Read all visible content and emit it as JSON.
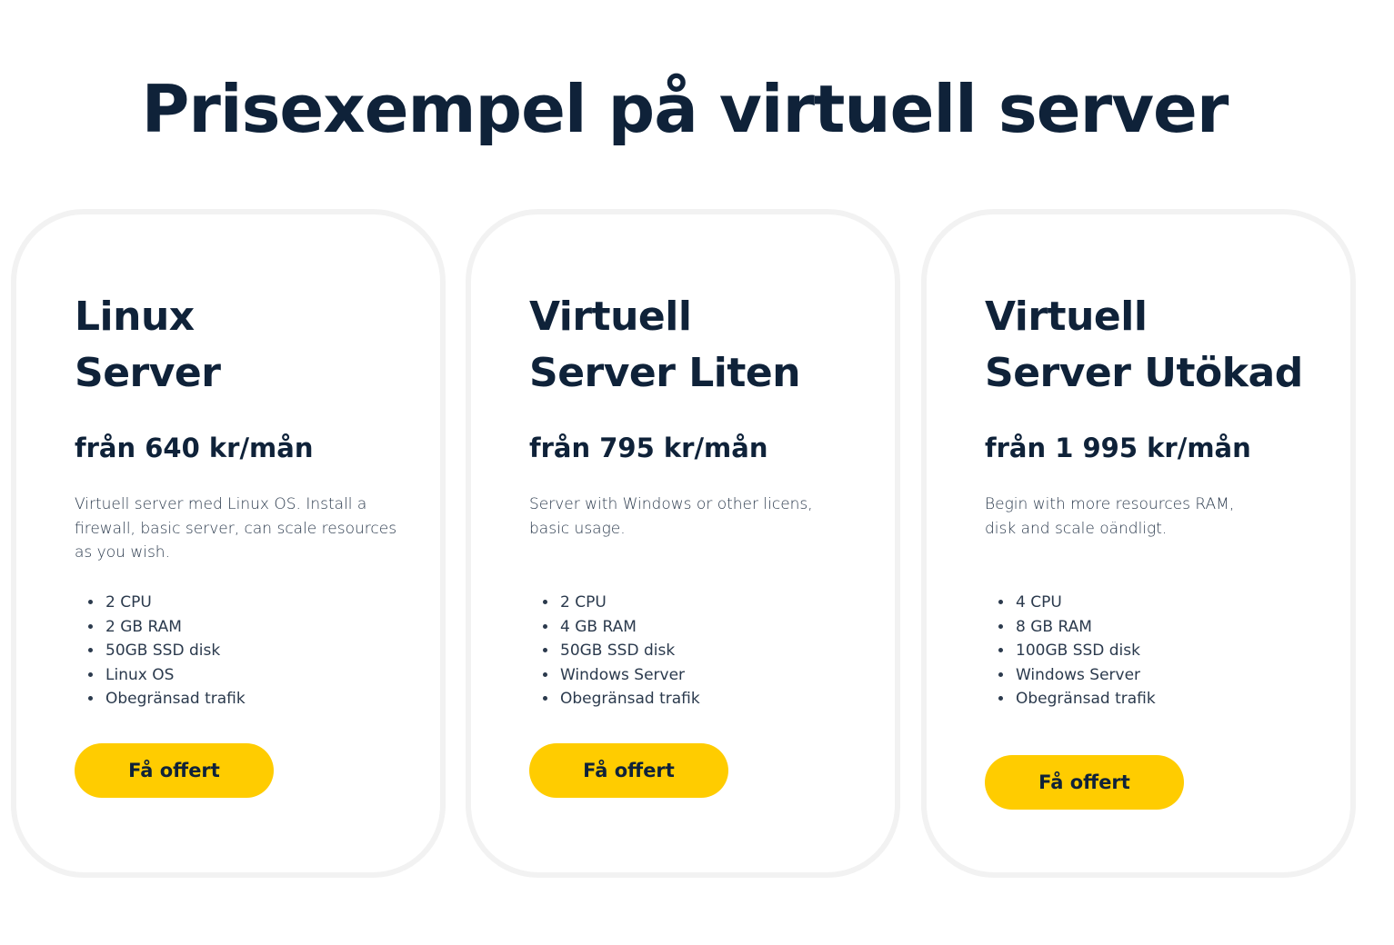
{
  "heading": "Prisexempel på virtuell server",
  "colors": {
    "accent": "#ffcc00",
    "text": "#0f2239",
    "card_border": "#f2f2f2"
  },
  "cards": [
    {
      "title_line1": "Linux",
      "title_line2": "Server",
      "price": "från 640 kr/mån",
      "description": "Virtuell server med Linux OS. Install a firewall, basic server, can scale resources as you wish.",
      "features": [
        "2 CPU",
        "2 GB RAM",
        "50GB SSD disk",
        "Linux OS",
        "Obegränsad trafik"
      ],
      "button_label": "Få offert"
    },
    {
      "title_line1": "Virtuell",
      "title_line2": "Server Liten",
      "price": "från 795 kr/mån",
      "description": "Server with Windows or other licens, basic usage.",
      "features": [
        "2 CPU",
        "4 GB RAM",
        "50GB SSD disk",
        "Windows Server",
        "Obegränsad trafik"
      ],
      "button_label": "Få offert"
    },
    {
      "title_line1": "Virtuell",
      "title_line2": "Server Utökad",
      "price": "från 1 995 kr/mån",
      "description": "Begin with more resources RAM, disk and scale oändligt.",
      "features": [
        "4 CPU",
        "8 GB RAM",
        "100GB SSD disk",
        "Windows Server",
        "Obegränsad trafik"
      ],
      "button_label": "Få offert"
    }
  ]
}
